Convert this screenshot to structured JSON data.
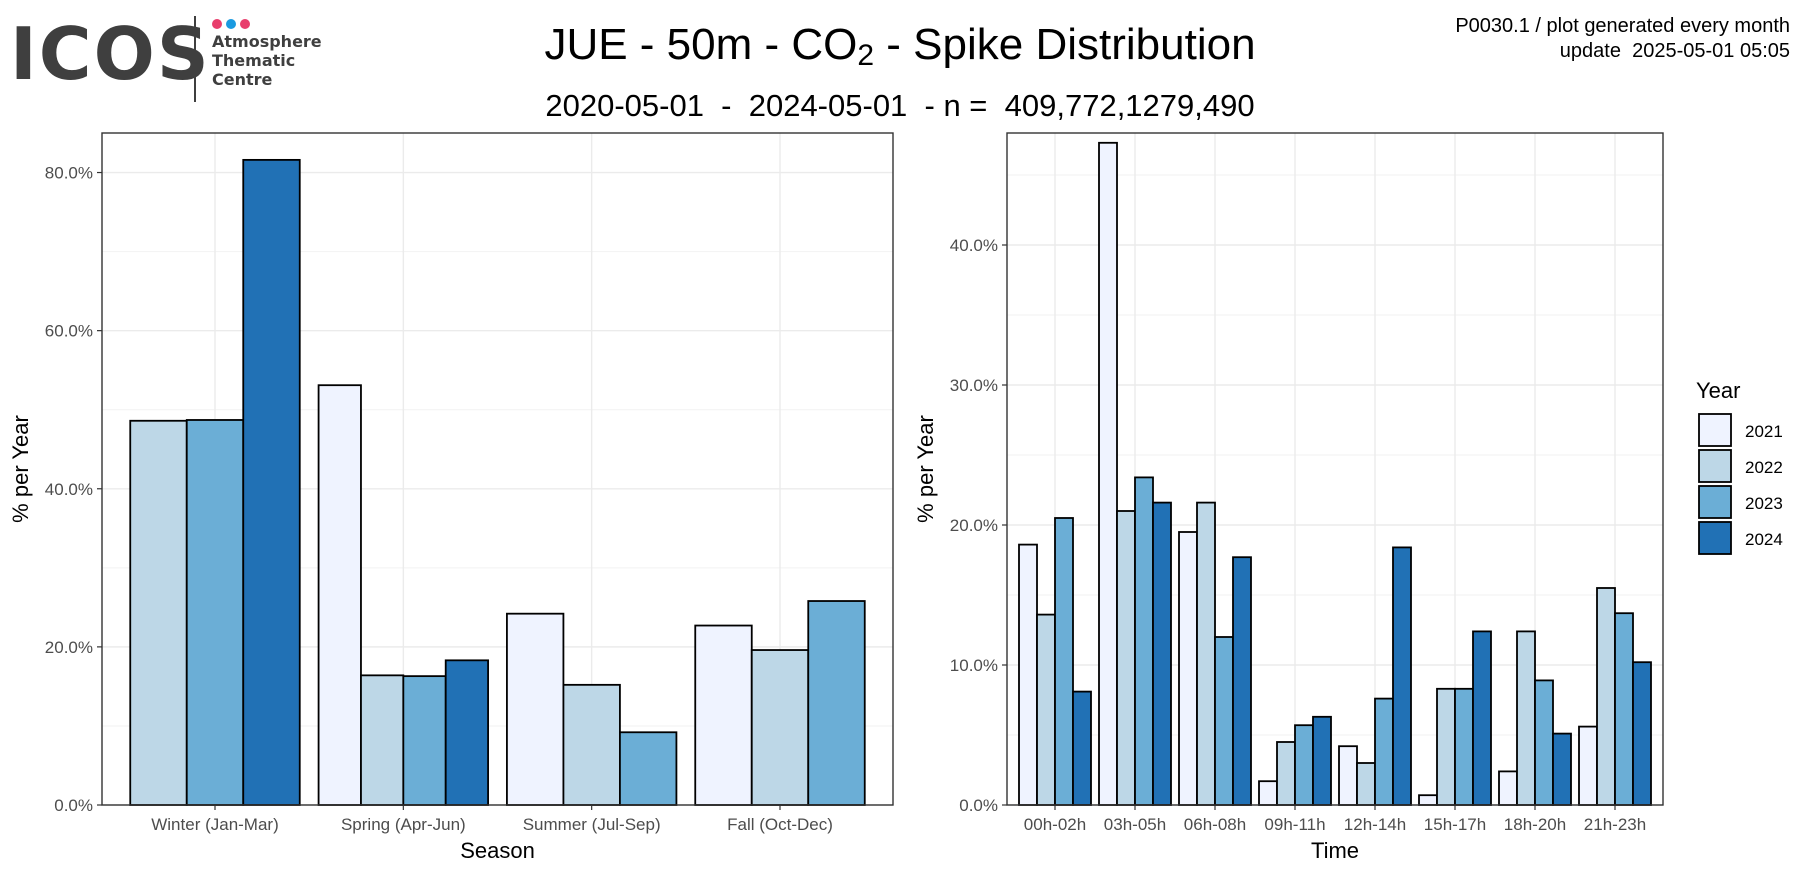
{
  "header": {
    "logo_word": "ICOS",
    "logo_lines": [
      "Atmosphere",
      "Thematic",
      "Centre"
    ],
    "logo_dot_colors": [
      "#e83e6c",
      "#1a9ae0",
      "#e83e6c"
    ],
    "title_main": "JUE - 50m - CO",
    "title_sub": "2",
    "title_rest": " - Spike Distribution",
    "subtitle": "2020-05-01  -  2024-05-01  - n =  409,772,1279,490",
    "meta_line1": "P0030.1 / plot generated every month",
    "meta_line2": "update  2025-05-01 05:05"
  },
  "chart_data": [
    {
      "type": "bar",
      "xlabel": "Season",
      "ylabel": "% per Year",
      "categories": [
        "Winter (Jan-Mar)",
        "Spring (Apr-Jun)",
        "Summer (Jul-Sep)",
        "Fall (Oct-Dec)"
      ],
      "ylim": [
        0,
        0.85
      ],
      "yticks": [
        0,
        0.2,
        0.4,
        0.6,
        0.8
      ],
      "ytick_labels": [
        "0.0%",
        "20.0%",
        "40.0%",
        "60.0%",
        "80.0%"
      ],
      "grid": true,
      "series": [
        {
          "name": "2021",
          "values": [
            null,
            0.531,
            0.242,
            0.227
          ]
        },
        {
          "name": "2022",
          "values": [
            0.486,
            0.164,
            0.152,
            0.196
          ]
        },
        {
          "name": "2023",
          "values": [
            0.487,
            0.163,
            0.092,
            0.258
          ]
        },
        {
          "name": "2024",
          "values": [
            0.816,
            0.183,
            null,
            null
          ]
        }
      ]
    },
    {
      "type": "bar",
      "xlabel": "Time",
      "ylabel": "% per Year",
      "categories": [
        "00h-02h",
        "03h-05h",
        "06h-08h",
        "09h-11h",
        "12h-14h",
        "15h-17h",
        "18h-20h",
        "21h-23h"
      ],
      "ylim": [
        0,
        0.48
      ],
      "yticks": [
        0,
        0.1,
        0.2,
        0.3,
        0.4
      ],
      "ytick_labels": [
        "0.0%",
        "10.0%",
        "20.0%",
        "30.0%",
        "40.0%"
      ],
      "grid": true,
      "series": [
        {
          "name": "2021",
          "values": [
            0.186,
            0.473,
            0.195,
            0.017,
            0.042,
            0.007,
            0.024,
            0.056
          ]
        },
        {
          "name": "2022",
          "values": [
            0.136,
            0.21,
            0.216,
            0.045,
            0.03,
            0.083,
            0.124,
            0.155
          ]
        },
        {
          "name": "2023",
          "values": [
            0.205,
            0.234,
            0.12,
            0.057,
            0.076,
            0.083,
            0.089,
            0.137
          ]
        },
        {
          "name": "2024",
          "values": [
            0.081,
            0.216,
            0.177,
            0.063,
            0.184,
            0.124,
            0.051,
            0.102
          ]
        }
      ]
    }
  ],
  "legend": {
    "title": "Year",
    "items": [
      "2021",
      "2022",
      "2023",
      "2024"
    ],
    "colors": [
      "#eff3ff",
      "#bdd7e7",
      "#6baed6",
      "#2171b5"
    ],
    "placement": "right"
  }
}
